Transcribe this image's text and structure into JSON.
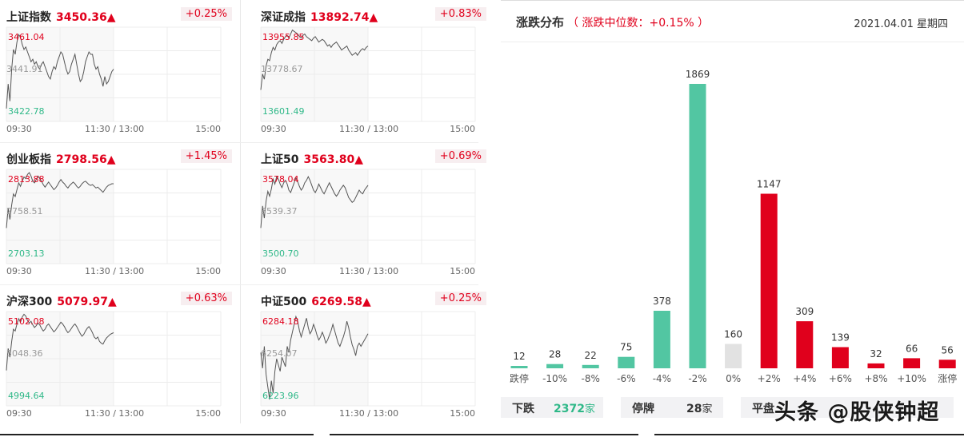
{
  "indices": [
    {
      "name": "上证指数",
      "price": "3450.36▲",
      "pct": "+0.25%",
      "hi": "3461.04",
      "mid": "3441.91",
      "lo": "3422.78",
      "series": [
        3428,
        3438,
        3431,
        3444,
        3452,
        3450,
        3455,
        3458,
        3457,
        3454,
        3452,
        3453,
        3451,
        3449,
        3447,
        3448,
        3446,
        3447,
        3445,
        3444,
        3446,
        3447,
        3445,
        3443,
        3441,
        3440,
        3443,
        3445,
        3444,
        3447,
        3449,
        3451,
        3450,
        3447,
        3444,
        3442,
        3443,
        3446,
        3448,
        3450,
        3446,
        3442,
        3439,
        3440,
        3443,
        3447,
        3449,
        3451,
        3450,
        3450,
        3446,
        3444,
        3445,
        3442,
        3440,
        3437,
        3441,
        3438,
        3439,
        3441,
        3443,
        3444
      ]
    },
    {
      "name": "深证成指",
      "price": "13892.74▲",
      "pct": "+0.83%",
      "hi": "13955.85",
      "mid": "13778.67",
      "lo": "13601.49",
      "series": [
        13720,
        13780,
        13760,
        13810,
        13835,
        13830,
        13860,
        13880,
        13870,
        13890,
        13900,
        13905,
        13895,
        13910,
        13920,
        13925,
        13915,
        13930,
        13945,
        13940,
        13935,
        13930,
        13920,
        13915,
        13925,
        13930,
        13920,
        13915,
        13910,
        13905,
        13915,
        13920,
        13910,
        13900,
        13905,
        13910,
        13905,
        13895,
        13885,
        13890,
        13880,
        13890,
        13895,
        13900,
        13890,
        13880,
        13870,
        13875,
        13880,
        13885,
        13870,
        13860,
        13850,
        13855,
        13860,
        13850,
        13860,
        13870,
        13875,
        13870,
        13880,
        13885
      ]
    },
    {
      "name": "创业板指",
      "price": "2798.56▲",
      "pct": "+1.45%",
      "hi": "2813.88",
      "mid": "2758.51",
      "lo": "2703.13",
      "series": [
        2745,
        2768,
        2755,
        2772,
        2785,
        2782,
        2790,
        2798,
        2794,
        2800,
        2805,
        2803,
        2808,
        2810,
        2806,
        2800,
        2798,
        2802,
        2806,
        2803,
        2800,
        2796,
        2793,
        2796,
        2799,
        2796,
        2793,
        2790,
        2792,
        2795,
        2799,
        2802,
        2799,
        2797,
        2794,
        2792,
        2795,
        2797,
        2799,
        2797,
        2794,
        2792,
        2794,
        2797,
        2799,
        2800,
        2798,
        2796,
        2795,
        2796,
        2794,
        2792,
        2793,
        2791,
        2789,
        2787,
        2790,
        2793,
        2795,
        2796,
        2797,
        2797
      ]
    },
    {
      "name": "上证50",
      "price": "3563.80▲",
      "pct": "+0.69%",
      "hi": "3578.04",
      "mid": "3539.37",
      "lo": "3500.70",
      "series": [
        3530,
        3548,
        3538,
        3552,
        3560,
        3556,
        3562,
        3570,
        3566,
        3572,
        3570,
        3566,
        3563,
        3567,
        3569,
        3566,
        3561,
        3559,
        3563,
        3567,
        3571,
        3568,
        3564,
        3561,
        3563,
        3567,
        3569,
        3572,
        3569,
        3565,
        3561,
        3559,
        3562,
        3566,
        3563,
        3560,
        3558,
        3561,
        3564,
        3567,
        3564,
        3561,
        3558,
        3556,
        3558,
        3561,
        3563,
        3565,
        3563,
        3559,
        3555,
        3553,
        3551,
        3552,
        3555,
        3558,
        3561,
        3559,
        3558,
        3561,
        3563,
        3565
      ]
    },
    {
      "name": "沪深300",
      "price": "5079.97▲",
      "pct": "+0.63%",
      "hi": "5102.08",
      "mid": "5048.36",
      "lo": "4994.64",
      "series": [
        5035,
        5060,
        5050,
        5068,
        5082,
        5080,
        5088,
        5094,
        5090,
        5096,
        5099,
        5097,
        5092,
        5089,
        5091,
        5087,
        5084,
        5086,
        5089,
        5087,
        5083,
        5080,
        5082,
        5086,
        5088,
        5085,
        5082,
        5079,
        5081,
        5084,
        5087,
        5090,
        5088,
        5085,
        5081,
        5078,
        5080,
        5083,
        5086,
        5088,
        5085,
        5081,
        5077,
        5074,
        5076,
        5080,
        5083,
        5085,
        5082,
        5078,
        5073,
        5071,
        5073,
        5068,
        5066,
        5065,
        5069,
        5072,
        5074,
        5076,
        5077,
        5078
      ]
    },
    {
      "name": "中证500",
      "price": "6269.58▲",
      "pct": "+0.25%",
      "hi": "6284.18",
      "mid": "6254.07",
      "lo": "6223.96",
      "series": [
        6258,
        6248,
        6262,
        6244,
        6236,
        6228,
        6240,
        6232,
        6246,
        6254,
        6250,
        6246,
        6255,
        6252,
        6249,
        6262,
        6258,
        6266,
        6271,
        6276,
        6281,
        6278,
        6272,
        6268,
        6272,
        6276,
        6280,
        6274,
        6270,
        6272,
        6276,
        6273,
        6269,
        6266,
        6268,
        6271,
        6268,
        6264,
        6266,
        6269,
        6272,
        6276,
        6272,
        6268,
        6264,
        6262,
        6265,
        6268,
        6272,
        6278,
        6274,
        6268,
        6263,
        6260,
        6256,
        6262,
        6264,
        6262,
        6264,
        6266,
        6268,
        6270
      ]
    }
  ],
  "time_labels": {
    "start": "09:30",
    "mid": "11:30 / 13:00",
    "end": "15:00"
  },
  "distribution": {
    "title": "涨跌分布",
    "median": "（ 涨跌中位数：+0.15% ）",
    "date": "2021.04.01 星期四",
    "colors": {
      "down": "#52c6a2",
      "flat": "#e2e2e2",
      "up": "#e0001c"
    }
  },
  "summary": {
    "down_label": "下跌",
    "down_count": "2372",
    "down_unit": "家",
    "suspend_label": "停牌",
    "suspend_count": "28",
    "suspend_unit": "家",
    "flat_label": "平盘"
  },
  "watermark": "头条 @股侠钟超",
  "chart_data": {
    "type": "bar",
    "title": "涨跌分布",
    "categories": [
      "跌停",
      "-10%",
      "-8%",
      "-6%",
      "-4%",
      "-2%",
      "0%",
      "+2%",
      "+4%",
      "+6%",
      "+8%",
      "+10%",
      "涨停"
    ],
    "values": [
      12,
      28,
      22,
      75,
      378,
      1869,
      160,
      1147,
      309,
      139,
      32,
      66,
      56
    ],
    "series": [
      {
        "values": [
          12,
          28,
          22,
          75,
          378,
          1869,
          160,
          1147,
          309,
          139,
          32,
          66,
          56
        ]
      }
    ],
    "ylim": [
      0,
      1869
    ],
    "grid": false,
    "legend": "none"
  }
}
